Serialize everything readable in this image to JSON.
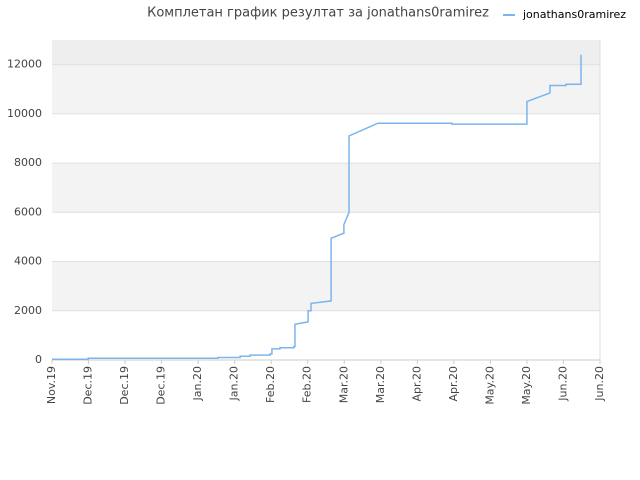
{
  "chart_data": {
    "type": "line",
    "title": "Комплетан график резултат за jonathans0ramirez",
    "xlim": [
      0,
      15
    ],
    "xticks": [
      {
        "value": 0,
        "label": "Nov.19"
      },
      {
        "value": 1,
        "label": "Dec.19"
      },
      {
        "value": 2,
        "label": "Dec.19"
      },
      {
        "value": 3,
        "label": "Dec.19"
      },
      {
        "value": 4,
        "label": "Jan.20"
      },
      {
        "value": 5,
        "label": "Jan.20"
      },
      {
        "value": 6,
        "label": "Feb.20"
      },
      {
        "value": 7,
        "label": "Feb.20"
      },
      {
        "value": 8,
        "label": "Mar.20"
      },
      {
        "value": 9,
        "label": "Mar.20"
      },
      {
        "value": 10,
        "label": "Apr.20"
      },
      {
        "value": 11,
        "label": "Apr.20"
      },
      {
        "value": 12,
        "label": "May.20"
      },
      {
        "value": 13,
        "label": "May.20"
      },
      {
        "value": 14,
        "label": "Jun.20"
      },
      {
        "value": 15,
        "label": "Jun.20"
      }
    ],
    "ylim": [
      0,
      13000
    ],
    "yticks": [
      0,
      2000,
      4000,
      6000,
      8000,
      10000,
      12000
    ],
    "grid": true,
    "legend": "top-right",
    "x": [
      0,
      0.99,
      0.99,
      4.54,
      4.54,
      5.15,
      5.15,
      5.42,
      5.42,
      5.97,
      5.97,
      6.02,
      6.02,
      6.24,
      6.24,
      6.62,
      6.62,
      6.65,
      6.65,
      7.01,
      7.01,
      7.09,
      7.09,
      7.64,
      7.64,
      7.99,
      7.99,
      8.13,
      8.13,
      8.92,
      10.95,
      10.95,
      13.0,
      13.0,
      13.63,
      13.63,
      14.07,
      14.07,
      14.48,
      14.48
    ],
    "series": [
      {
        "name": "jonathans0ramirez",
        "color": "#7cb5ec",
        "values": [
          30,
          30,
          70,
          70,
          100,
          100,
          150,
          150,
          200,
          200,
          250,
          250,
          450,
          450,
          500,
          500,
          550,
          550,
          1450,
          1550,
          2000,
          2000,
          2300,
          2400,
          4950,
          5150,
          5500,
          6000,
          9100,
          9620,
          9620,
          9580,
          9580,
          10500,
          10850,
          11150,
          11150,
          11200,
          11200,
          12400
        ]
      }
    ]
  }
}
